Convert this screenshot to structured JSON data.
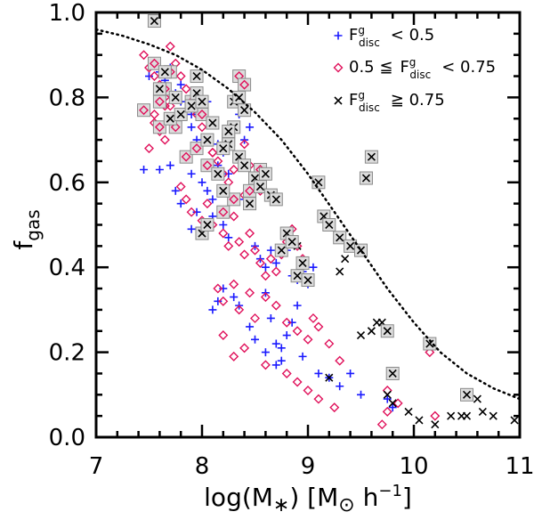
{
  "chart_data": {
    "type": "scatter",
    "title": "",
    "xlabel": "log(M∗) [M⊙ h⁻¹]",
    "ylabel": "f_gas",
    "xlim": [
      7,
      11
    ],
    "ylim": [
      0.0,
      1.0
    ],
    "x_ticks": [
      "7",
      "8",
      "9",
      "10",
      "11"
    ],
    "y_ticks": [
      "0.0",
      "0.2",
      "0.4",
      "0.6",
      "0.8",
      "1.0"
    ],
    "legend": [
      {
        "marker": "+",
        "color": "#1a1aff",
        "label": "F^g_disc < 0.5"
      },
      {
        "marker": "diamond",
        "color": "#e0105a",
        "label": "0.5 ≦ F^g_disc < 0.75"
      },
      {
        "marker": "x",
        "color": "#000000",
        "label": "F^g_disc ≧ 0.75"
      }
    ],
    "legend_text": {
      "l1_sub": "disc",
      "l1_sup": "g",
      "l1_rest": "< 0.5",
      "l2_pre": "0.5 ≦",
      "l2_sub": "disc",
      "l2_sup": "g",
      "l2_rest": "< 0.75",
      "l3_sub": "disc",
      "l3_sup": "g",
      "l3_rest": "≧ 0.75"
    },
    "axis_text": {
      "x_main": "log(M",
      "x_star": "∗",
      "x_rest": ") [M",
      "x_sun": "⊙",
      "x_h": " h",
      "x_exp": "−1",
      "x_close": "]",
      "y_main": "f",
      "y_sub": "gas"
    },
    "curve": {
      "style": "dotted",
      "x": [
        7.0,
        7.25,
        7.5,
        7.75,
        8.0,
        8.25,
        8.5,
        8.75,
        9.0,
        9.25,
        9.5,
        9.75,
        10.0,
        10.25,
        10.5,
        10.75,
        11.0
      ],
      "y": [
        0.96,
        0.945,
        0.925,
        0.9,
        0.865,
        0.82,
        0.765,
        0.7,
        0.62,
        0.53,
        0.44,
        0.35,
        0.27,
        0.2,
        0.15,
        0.115,
        0.09
      ]
    },
    "series": [
      {
        "name": "F^g_disc < 0.5",
        "marker": "+",
        "color": "#1a1aff",
        "boxed": false,
        "x": [
          7.55,
          7.6,
          7.65,
          7.7,
          7.5,
          7.75,
          7.8,
          7.85,
          7.9,
          7.95,
          7.6,
          7.7,
          7.85,
          7.9,
          8.0,
          8.05,
          8.1,
          7.75,
          7.8,
          7.95,
          8.15,
          8.2,
          8.3,
          8.35,
          8.4,
          8.45,
          7.9,
          8.0,
          8.1,
          8.2,
          8.25,
          8.5,
          8.55,
          8.6,
          8.65,
          8.7,
          8.8,
          8.85,
          8.9,
          8.95,
          9.0,
          9.05,
          8.1,
          8.15,
          8.2,
          8.3,
          8.35,
          8.6,
          8.65,
          8.7,
          8.75,
          8.8,
          8.85,
          8.9,
          9.1,
          9.2,
          9.3,
          9.4,
          9.5,
          9.75,
          9.8,
          8.45,
          8.5,
          8.6,
          8.7,
          8.75,
          8.95,
          7.45,
          7.65,
          7.8,
          8.05,
          8.15,
          8.35,
          8.55,
          8.25,
          7.9
        ],
        "y": [
          0.88,
          0.86,
          0.84,
          0.87,
          0.85,
          0.81,
          0.79,
          0.77,
          0.73,
          0.7,
          0.63,
          0.64,
          0.66,
          0.62,
          0.6,
          0.58,
          0.56,
          0.58,
          0.55,
          0.53,
          0.64,
          0.67,
          0.72,
          0.76,
          0.7,
          0.73,
          0.49,
          0.48,
          0.52,
          0.5,
          0.47,
          0.45,
          0.42,
          0.4,
          0.44,
          0.41,
          0.44,
          0.38,
          0.37,
          0.39,
          0.36,
          0.4,
          0.3,
          0.32,
          0.35,
          0.33,
          0.31,
          0.34,
          0.28,
          0.22,
          0.18,
          0.24,
          0.27,
          0.31,
          0.15,
          0.14,
          0.12,
          0.15,
          0.1,
          0.09,
          0.07,
          0.26,
          0.23,
          0.2,
          0.17,
          0.21,
          0.19,
          0.63,
          0.74,
          0.83,
          0.79,
          0.69,
          0.56,
          0.61,
          0.62,
          0.76
        ]
      },
      {
        "name": "0.5 ≦ F^g_disc < 0.75",
        "marker": "diamond",
        "color": "#e0105a",
        "boxed": false,
        "x": [
          7.45,
          7.5,
          7.55,
          7.6,
          7.65,
          7.7,
          7.55,
          7.6,
          7.65,
          7.5,
          7.7,
          7.75,
          7.8,
          7.85,
          7.9,
          7.95,
          8.0,
          8.05,
          8.1,
          8.15,
          8.2,
          8.25,
          8.3,
          8.35,
          8.4,
          8.45,
          8.5,
          8.55,
          7.8,
          7.85,
          7.9,
          8.0,
          8.05,
          8.1,
          8.2,
          8.25,
          8.3,
          8.35,
          8.4,
          8.45,
          8.5,
          8.55,
          8.6,
          8.65,
          8.7,
          8.75,
          8.8,
          8.85,
          8.9,
          8.95,
          8.15,
          8.2,
          8.3,
          8.35,
          8.45,
          8.5,
          8.6,
          8.7,
          8.8,
          8.9,
          9.0,
          9.05,
          9.1,
          9.2,
          9.3,
          8.2,
          8.3,
          8.4,
          8.6,
          8.8,
          8.9,
          9.0,
          9.1,
          9.25,
          9.75,
          9.85,
          10.2,
          10.15,
          9.7,
          9.75,
          7.55,
          7.65,
          8.1,
          8.4
        ],
        "y": [
          0.9,
          0.87,
          0.85,
          0.83,
          0.8,
          0.78,
          0.74,
          0.72,
          0.7,
          0.68,
          0.92,
          0.88,
          0.85,
          0.82,
          0.79,
          0.76,
          0.73,
          0.7,
          0.67,
          0.65,
          0.62,
          0.6,
          0.63,
          0.66,
          0.69,
          0.64,
          0.61,
          0.58,
          0.59,
          0.56,
          0.53,
          0.51,
          0.55,
          0.5,
          0.48,
          0.45,
          0.52,
          0.46,
          0.43,
          0.48,
          0.44,
          0.41,
          0.38,
          0.42,
          0.39,
          0.43,
          0.46,
          0.49,
          0.45,
          0.42,
          0.35,
          0.32,
          0.36,
          0.3,
          0.34,
          0.28,
          0.33,
          0.31,
          0.27,
          0.25,
          0.23,
          0.28,
          0.26,
          0.22,
          0.18,
          0.24,
          0.19,
          0.21,
          0.17,
          0.15,
          0.13,
          0.11,
          0.09,
          0.07,
          0.11,
          0.08,
          0.05,
          0.2,
          0.03,
          0.06,
          0.76,
          0.78,
          0.67,
          0.57
        ]
      },
      {
        "name": "F^g_disc ≧ 0.75",
        "marker": "x",
        "color": "#000000",
        "boxed": false,
        "x": [
          9.3,
          9.5,
          9.6,
          9.65,
          9.7,
          9.75,
          9.8,
          9.95,
          10.05,
          10.2,
          10.35,
          10.45,
          10.5,
          10.6,
          10.65,
          10.75,
          10.95,
          8.9,
          9.2,
          9.35
        ],
        "y": [
          0.39,
          0.24,
          0.25,
          0.27,
          0.27,
          0.1,
          0.08,
          0.06,
          0.04,
          0.03,
          0.05,
          0.05,
          0.05,
          0.09,
          0.06,
          0.05,
          0.04,
          0.45,
          0.14,
          0.42
        ]
      },
      {
        "name": "boxed diamond",
        "marker": "diamond",
        "color": "#e0105a",
        "boxed": true,
        "x": [
          7.55,
          7.65,
          7.45,
          7.7,
          7.6,
          7.9,
          8.0,
          8.35,
          8.4,
          8.25,
          7.85,
          7.75,
          7.95,
          8.5,
          8.3,
          8.2,
          7.6,
          8.05,
          8.45,
          8.55
        ],
        "y": [
          0.88,
          0.82,
          0.77,
          0.86,
          0.73,
          0.79,
          0.76,
          0.85,
          0.83,
          0.7,
          0.66,
          0.73,
          0.68,
          0.6,
          0.56,
          0.53,
          0.79,
          0.64,
          0.58,
          0.63
        ]
      },
      {
        "name": "boxed x",
        "marker": "x",
        "color": "#000000",
        "boxed": true,
        "x": [
          7.55,
          7.6,
          7.65,
          7.7,
          7.75,
          7.8,
          7.9,
          7.95,
          8.0,
          8.05,
          8.1,
          8.15,
          8.2,
          8.25,
          8.3,
          8.35,
          8.4,
          8.45,
          8.5,
          8.55,
          8.6,
          8.65,
          8.7,
          8.75,
          8.8,
          8.85,
          8.9,
          8.95,
          9.0,
          9.1,
          9.15,
          9.2,
          9.3,
          9.4,
          9.5,
          9.55,
          9.6,
          9.75,
          9.8,
          10.15,
          10.5,
          8.0,
          8.05,
          7.95,
          8.3,
          8.4,
          8.2,
          8.25,
          8.35
        ],
        "y": [
          0.98,
          0.82,
          0.86,
          0.75,
          0.8,
          0.76,
          0.78,
          0.81,
          0.79,
          0.7,
          0.74,
          0.62,
          0.58,
          0.69,
          0.73,
          0.66,
          0.64,
          0.55,
          0.61,
          0.59,
          0.62,
          0.57,
          0.56,
          0.44,
          0.48,
          0.46,
          0.38,
          0.41,
          0.37,
          0.6,
          0.52,
          0.5,
          0.47,
          0.45,
          0.44,
          0.61,
          0.66,
          0.25,
          0.15,
          0.22,
          0.1,
          0.48,
          0.5,
          0.85,
          0.79,
          0.77,
          0.68,
          0.72,
          0.8
        ]
      }
    ]
  }
}
